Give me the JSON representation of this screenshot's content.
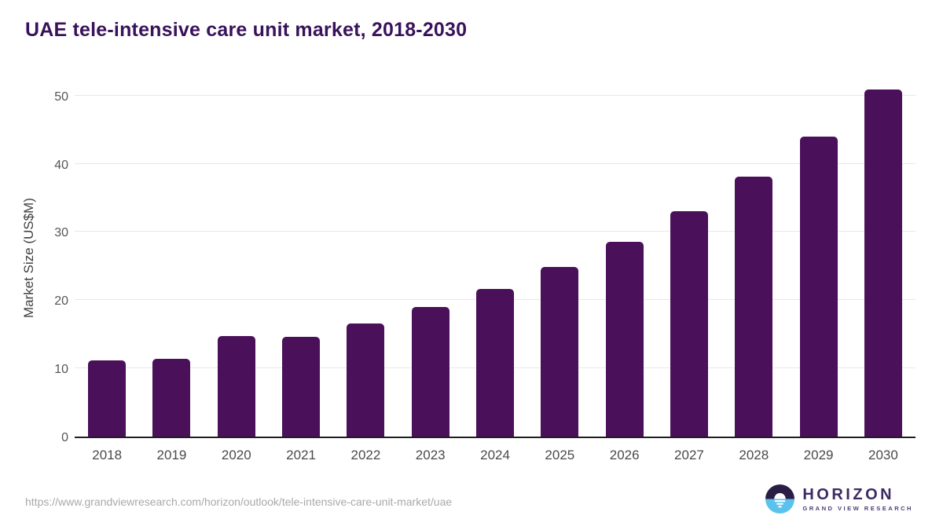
{
  "header": {
    "title": "UAE tele-intensive care unit market, 2018-2030"
  },
  "chart_data": {
    "type": "bar",
    "title": "UAE tele-intensive care unit market, 2018-2030",
    "categories": [
      "2018",
      "2019",
      "2020",
      "2021",
      "2022",
      "2023",
      "2024",
      "2025",
      "2026",
      "2027",
      "2028",
      "2029",
      "2030"
    ],
    "values": [
      11.2,
      11.4,
      14.7,
      14.6,
      16.6,
      19.0,
      21.7,
      24.9,
      28.5,
      33.1,
      38.1,
      44.0,
      50.9
    ],
    "xlabel": "",
    "ylabel": "Market Size (US$M)",
    "ylim": [
      0,
      52.5
    ],
    "yticks": [
      0,
      10,
      20,
      30,
      40,
      50
    ],
    "grid": "horizontal",
    "legend": "none",
    "bar_color": "#4a1059"
  },
  "colors": {
    "title": "#38125a",
    "bar": "#4a1059",
    "gridline": "#e8e8e8",
    "axis_line": "#1f1f1f",
    "tick_text": "#555555",
    "logo_dark": "#2a1e45",
    "logo_blue": "#5bc2ee"
  },
  "footer": {
    "source_url": "https://www.grandviewresearch.com/horizon/outlook/tele-intensive-care-unit-market/uae",
    "logo": {
      "name": "HORIZON",
      "tagline": "GRAND VIEW RESEARCH"
    }
  }
}
